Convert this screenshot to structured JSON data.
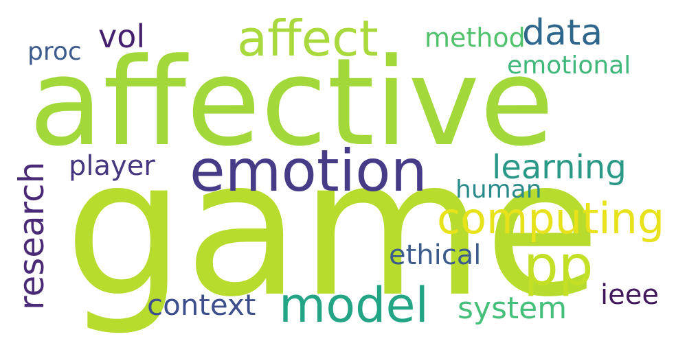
{
  "words": [
    {
      "key": "affective",
      "text": "affective",
      "color": "#a2d83a"
    },
    {
      "key": "game",
      "text": "game",
      "color": "#b7dc2e"
    },
    {
      "key": "emotion",
      "text": "emotion",
      "color": "#453b87"
    },
    {
      "key": "affect",
      "text": "affect",
      "color": "#a9d93c"
    },
    {
      "key": "data",
      "text": "data",
      "color": "#2f678c"
    },
    {
      "key": "vol",
      "text": "vol",
      "color": "#44206f"
    },
    {
      "key": "method",
      "text": "method",
      "color": "#50c26c"
    },
    {
      "key": "proc",
      "text": "proc",
      "color": "#3d5b8c"
    },
    {
      "key": "emotional",
      "text": "emotional",
      "color": "#3eb779"
    },
    {
      "key": "learning",
      "text": "learning",
      "color": "#2a9886"
    },
    {
      "key": "player",
      "text": "player",
      "color": "#46377f"
    },
    {
      "key": "human",
      "text": "human",
      "color": "#2a8b8b"
    },
    {
      "key": "computing",
      "text": "computing",
      "color": "#e8e21b"
    },
    {
      "key": "pp",
      "text": "pp",
      "color": "#c3df26"
    },
    {
      "key": "ethical",
      "text": "ethical",
      "color": "#3b5c8c"
    },
    {
      "key": "model",
      "text": "model",
      "color": "#23a585"
    },
    {
      "key": "context",
      "text": "context",
      "color": "#3d4e8c"
    },
    {
      "key": "system",
      "text": "system",
      "color": "#44c07a"
    },
    {
      "key": "ieee",
      "text": "ieee",
      "color": "#43195e"
    },
    {
      "key": "research",
      "text": "research",
      "color": "#4a2a76"
    }
  ]
}
